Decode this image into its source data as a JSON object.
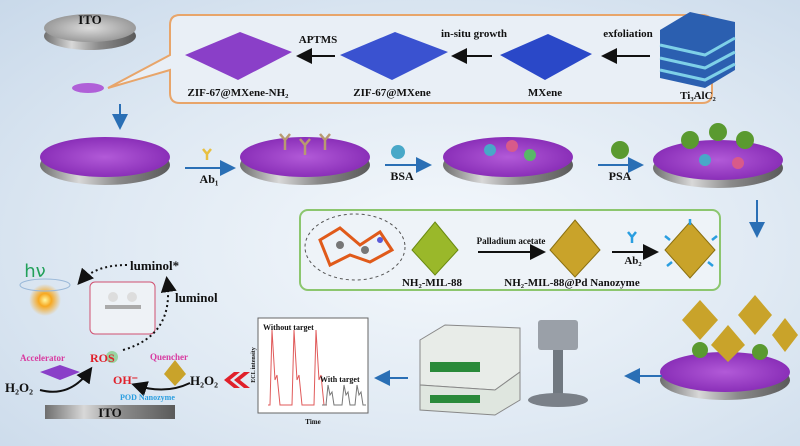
{
  "ito_top": "ITO",
  "synthesis": {
    "materials": [
      "ZIF-67@MXene-NH₂",
      "ZIF-67@MXene",
      "MXene",
      "Ti₃AlC₂"
    ],
    "steps": [
      "APTMS",
      "in-situ growth",
      "exfoliation"
    ]
  },
  "assembly": {
    "steps": [
      "Ab₁",
      "BSA",
      "PSA"
    ]
  },
  "nanozyme": {
    "mof_label": "NH₂-MIL-88",
    "pd_step": "Palladium acetate",
    "nanozyme_label": "NH₂-MIL-88@Pd Nanozyme",
    "ab2_step": "Ab₂"
  },
  "ecl_plot": {
    "without_target": "Without target",
    "with_target": "With target",
    "ylabel": "ECL intensity",
    "xlabel": "Time"
  },
  "mechanism": {
    "hv": "hν",
    "luminol_star": "luminol*",
    "luminol": "luminol",
    "accelerator": "Accelerator",
    "ros": "ROS",
    "quencher": "Quencher",
    "oh": "OH⁻",
    "h2o2_left": "H₂O₂",
    "h2o2_right": "H₂O₂",
    "pod": "POD Nanozyme",
    "ito_bottom": "ITO"
  },
  "colors": {
    "callout_orange": "#e8a56a",
    "callout_green": "#8cc66e",
    "arrow_blue": "#2a6fb5",
    "accent_red": "#e0202a",
    "pink": "#d83aa0",
    "pod_blue": "#2a9ee0",
    "hv_green": "#22a05a"
  }
}
